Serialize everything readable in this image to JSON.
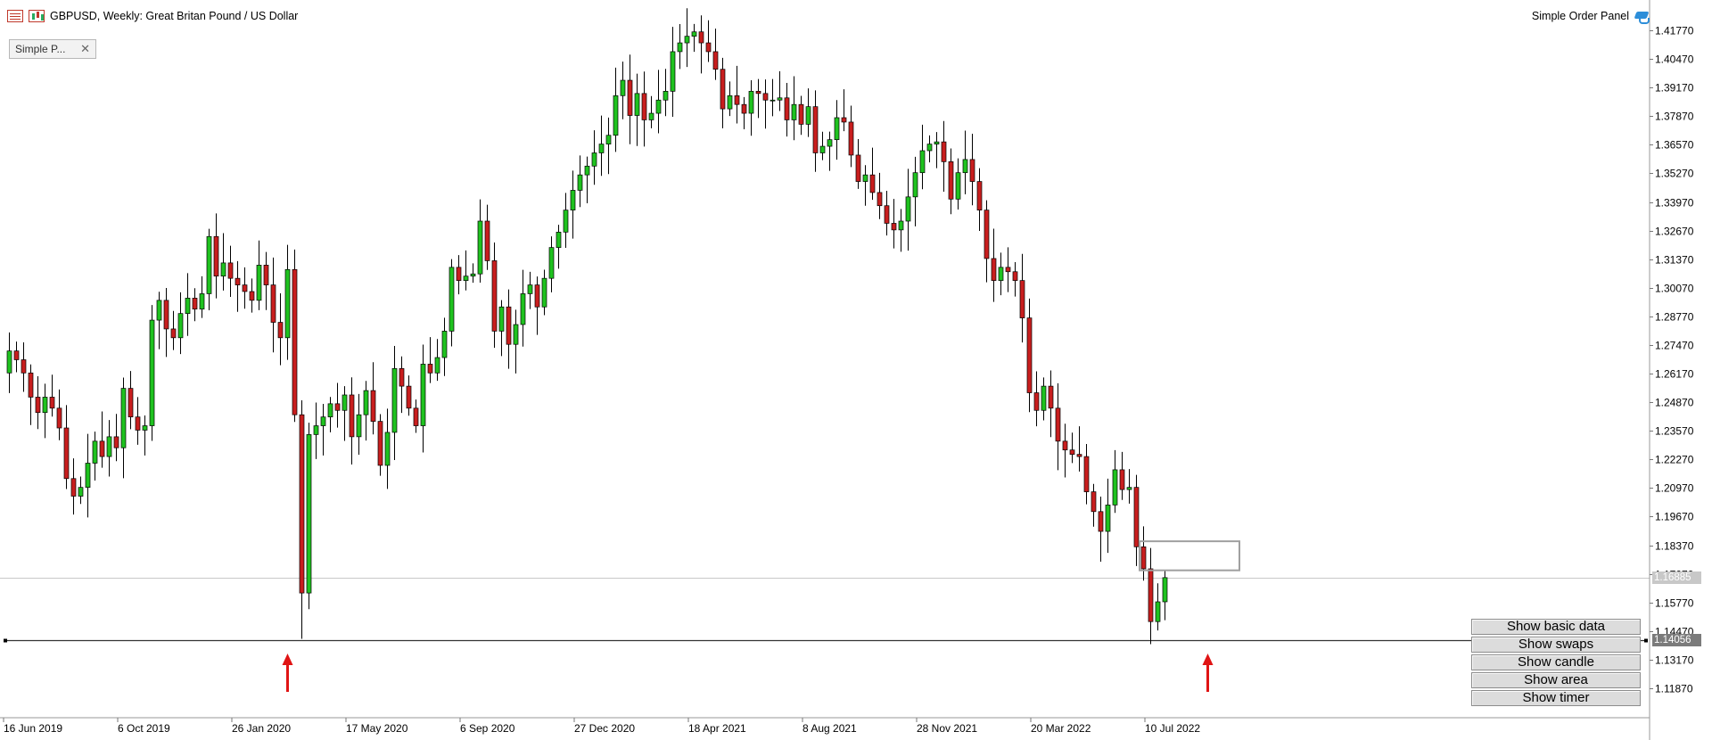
{
  "window": {
    "title": "GBPUSD, Weekly:  Great Britan Pound / US Dollar",
    "panel_caption": "Simple Order Panel",
    "icons": [
      "symbol-list-icon",
      "bars-chart-icon",
      "graduation-cap-icon",
      "close-icon",
      "arrow-up-icon"
    ]
  },
  "minimized_window": {
    "label": "Simple P...",
    "close": "✕"
  },
  "order_panel": {
    "buttons": [
      "Show basic data",
      "Show swaps",
      "Show candle",
      "Show area",
      "Show timer"
    ]
  },
  "price_tags": {
    "bid": "1.16885",
    "line": "1.14056"
  },
  "colors": {
    "bull": "#1fc21f",
    "bear": "#c81e1e",
    "wick": "#000000",
    "grid": "#c8c8c8",
    "arrow": "#e01414",
    "zone_box": "#a0a0a0"
  },
  "chart_data": {
    "type": "candlestick",
    "symbol": "GBPUSD",
    "timeframe": "Weekly",
    "title": "GBPUSD, Weekly:  Great Britan Pound / US Dollar",
    "grid": false,
    "y_range": [
      1.0985,
      1.4305
    ],
    "y_ticks": [
      "1.41770",
      "1.40470",
      "1.39170",
      "1.37870",
      "1.36570",
      "1.35270",
      "1.33970",
      "1.32670",
      "1.31370",
      "1.30070",
      "1.28770",
      "1.27470",
      "1.26170",
      "1.24870",
      "1.23570",
      "1.22270",
      "1.20970",
      "1.19670",
      "1.18370",
      "1.17070",
      "1.15770",
      "1.14470",
      "1.13170",
      "1.11870"
    ],
    "x_ticks": [
      {
        "label": "16 Jun 2019",
        "bar": 0
      },
      {
        "label": "6 Oct 2019",
        "bar": 16
      },
      {
        "label": "26 Jan 2020",
        "bar": 32
      },
      {
        "label": "17 May 2020",
        "bar": 48
      },
      {
        "label": "6 Sep 2020",
        "bar": 64
      },
      {
        "label": "27 Dec 2020",
        "bar": 80
      },
      {
        "label": "18 Apr 2021",
        "bar": 96
      },
      {
        "label": "8 Aug 2021",
        "bar": 112
      },
      {
        "label": "28 Nov 2021",
        "bar": 128
      },
      {
        "label": "20 Mar 2022",
        "bar": 144
      },
      {
        "label": "10 Jul 2022",
        "bar": 160
      }
    ],
    "horizontal_lines": [
      {
        "name": "bid",
        "price": 1.16885
      },
      {
        "name": "support",
        "price": 1.14056
      }
    ],
    "zone_box": {
      "bar_start": 159,
      "bar_end": 172,
      "top": 1.1855,
      "bottom": 1.1723
    },
    "arrows": [
      {
        "bar": 39
      },
      {
        "bar": 168
      }
    ],
    "ohlc_closes": [
      1.272,
      1.268,
      1.262,
      1.251,
      1.244,
      1.251,
      1.246,
      1.237,
      1.214,
      1.206,
      1.21,
      1.221,
      1.231,
      1.224,
      1.233,
      1.228,
      1.255,
      1.242,
      1.236,
      1.238,
      1.286,
      1.295,
      1.282,
      1.278,
      1.289,
      1.296,
      1.291,
      1.298,
      1.324,
      1.306,
      1.312,
      1.305,
      1.302,
      1.299,
      1.295,
      1.311,
      1.302,
      1.285,
      1.278,
      1.309,
      1.243,
      1.162,
      1.234,
      1.238,
      1.242,
      1.248,
      1.245,
      1.252,
      1.233,
      1.243,
      1.254,
      1.24,
      1.22,
      1.235,
      1.264,
      1.256,
      1.246,
      1.238,
      1.266,
      1.262,
      1.269,
      1.281,
      1.31,
      1.304,
      1.306,
      1.307,
      1.331,
      1.313,
      1.281,
      1.292,
      1.275,
      1.284,
      1.298,
      1.302,
      1.292,
      1.305,
      1.319,
      1.326,
      1.336,
      1.345,
      1.352,
      1.356,
      1.362,
      1.366,
      1.37,
      1.388,
      1.395,
      1.379,
      1.389,
      1.377,
      1.38,
      1.386,
      1.39,
      1.408,
      1.412,
      1.415,
      1.417,
      1.412,
      1.408,
      1.4,
      1.382,
      1.388,
      1.384,
      1.38,
      1.39,
      1.389,
      1.386,
      1.386,
      1.387,
      1.377,
      1.384,
      1.375,
      1.383,
      1.362,
      1.365,
      1.368,
      1.378,
      1.376,
      1.361,
      1.349,
      1.352,
      1.344,
      1.338,
      1.33,
      1.327,
      1.331,
      1.342,
      1.353,
      1.363,
      1.366,
      1.367,
      1.358,
      1.341,
      1.353,
      1.359,
      1.349,
      1.336,
      1.314,
      1.304,
      1.31,
      1.308,
      1.304,
      1.287,
      1.253,
      1.245,
      1.256,
      1.246,
      1.231,
      1.227,
      1.225,
      1.224,
      1.208,
      1.199,
      1.19,
      1.202,
      1.218,
      1.209,
      1.21,
      1.183,
      1.173,
      1.149,
      1.158,
      1.169
    ]
  }
}
